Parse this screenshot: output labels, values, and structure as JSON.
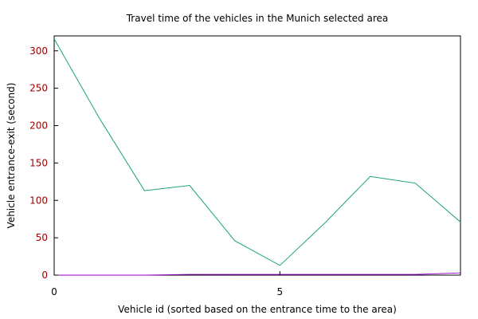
{
  "chart_data": {
    "type": "line",
    "title": "Travel time of the vehicles in the Munich selected area",
    "xlabel": "Vehicle id (sorted based on the entrance time to the area)",
    "ylabel": "Vehicle entrance-exit (second)",
    "xlim": [
      0,
      9
    ],
    "ylim": [
      0,
      320
    ],
    "xticks": [
      0,
      5
    ],
    "yticks": [
      0,
      50,
      100,
      150,
      200,
      250,
      300
    ],
    "grid": false,
    "legend": "none",
    "colors": {
      "axes": "#000000",
      "ytick_text": "#9b0000"
    },
    "series": [
      {
        "color": "#1aa37a",
        "x": [
          0,
          1,
          2,
          3,
          4,
          5,
          6,
          7,
          8,
          9
        ],
        "y": [
          316,
          210,
          113,
          120,
          46,
          13,
          70,
          132,
          123,
          71
        ]
      },
      {
        "color": "#9900cc",
        "x": [
          0,
          1,
          2,
          3,
          4,
          5,
          6,
          7,
          8,
          9
        ],
        "y": [
          0,
          0,
          0,
          1,
          1,
          1,
          1,
          1,
          1,
          3
        ]
      }
    ]
  }
}
